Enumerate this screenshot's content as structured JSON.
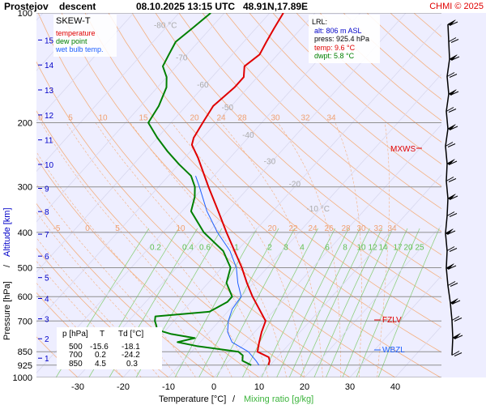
{
  "header": {
    "station": "Prostejov",
    "mode": "descent",
    "datetime": "08.10.2025 13:15 UTC",
    "coords": "48.91N,17.89E",
    "copyright": "CHMI © 2025"
  },
  "legend": {
    "title": "SKEW-T",
    "items": [
      {
        "label": "temperature",
        "color": "#e00000"
      },
      {
        "label": "dew point",
        "color": "#008000"
      },
      {
        "label": "wet bulb temp.",
        "color": "#1e60ff"
      }
    ]
  },
  "lrl": {
    "title": "LRL:",
    "alt": "alt: 806 m ASL",
    "press": "press: 925.4 hPa",
    "temp": "temp: 9.6 °C",
    "dwpt": "dwpt: 5.8 °C"
  },
  "axes": {
    "ylabel_pressure": "Pressure [hPa]",
    "ylabel_sep": "/",
    "ylabel_altitude": "Altitude [km]",
    "xlabel_temp": "Temperature [°C]",
    "xlabel_sep": "/",
    "xlabel_mix": "Mixing ratio [g/kg]"
  },
  "table": {
    "header": [
      "p [hPa]",
      "T",
      "Td [°C]"
    ],
    "rows": [
      [
        "500",
        "-15.6",
        "-18.1"
      ],
      [
        "700",
        "0.2",
        "-24.2"
      ],
      [
        "850",
        "4.5",
        "0.3"
      ]
    ]
  },
  "levels": {
    "mxws": {
      "label": "MXWS",
      "pressure": 230
    },
    "fzlv": {
      "label": "FZLV",
      "pressure": 700
    },
    "wbzl": {
      "label": "WBZL",
      "pressure": 850
    }
  },
  "chart_data": {
    "type": "line",
    "title": "SKEW-T",
    "xlabel": "Temperature [°C]",
    "ylabel": "Pressure [hPa]",
    "y_scale": "log",
    "ylim": [
      1000,
      100
    ],
    "xlim": [
      -35,
      25
    ],
    "x_ticks": [
      -30,
      -20,
      -10,
      0,
      10,
      20,
      30,
      40
    ],
    "y_ticks": [
      100,
      200,
      300,
      400,
      500,
      600,
      700,
      850,
      925,
      1000
    ],
    "altitude_ticks_km": [
      1,
      2,
      3,
      4,
      5,
      6,
      7,
      8,
      9,
      10,
      11,
      12,
      13,
      14,
      15,
      16
    ],
    "isotherm_labels": [
      -80,
      -70,
      -60,
      -50,
      -40,
      -30,
      -20,
      -10
    ],
    "mixing_ratio_labels": [
      "0.2",
      "0.4",
      "0.6",
      "1",
      "2",
      "3",
      "4",
      "6",
      "8",
      "10",
      "12",
      "14",
      "17",
      "20",
      "25"
    ],
    "adiabat_labels_top": [
      "0",
      "5",
      "10",
      "15",
      "20",
      "24",
      "28",
      "30",
      "32",
      "34"
    ],
    "adiabat_labels_mid": [
      "-10",
      "-5",
      "0",
      "5",
      "10",
      "20",
      "22",
      "24",
      "26",
      "28",
      "30",
      "32",
      "34"
    ],
    "series": [
      {
        "name": "temperature",
        "color": "#e00000",
        "points": [
          [
            925,
            9.6
          ],
          [
            900,
            9.0
          ],
          [
            880,
            8.1
          ],
          [
            850,
            4.5
          ],
          [
            800,
            3.0
          ],
          [
            750,
            1.5
          ],
          [
            700,
            0.2
          ],
          [
            650,
            -3.5
          ],
          [
            600,
            -7.5
          ],
          [
            550,
            -11.5
          ],
          [
            500,
            -15.6
          ],
          [
            450,
            -20.5
          ],
          [
            400,
            -26
          ],
          [
            350,
            -32
          ],
          [
            300,
            -39
          ],
          [
            250,
            -47
          ],
          [
            230,
            -51
          ],
          [
            220,
            -52
          ],
          [
            200,
            -53
          ],
          [
            180,
            -54
          ],
          [
            160,
            -53
          ],
          [
            150,
            -53
          ],
          [
            140,
            -55
          ],
          [
            130,
            -54
          ],
          [
            120,
            -55
          ],
          [
            110,
            -56
          ],
          [
            100,
            -57
          ]
        ]
      },
      {
        "name": "dew point",
        "color": "#008000",
        "points": [
          [
            925,
            5.8
          ],
          [
            900,
            3.0
          ],
          [
            870,
            2.0
          ],
          [
            850,
            0.3
          ],
          [
            820,
            -10
          ],
          [
            800,
            -15
          ],
          [
            780,
            -12
          ],
          [
            760,
            -18
          ],
          [
            740,
            -22
          ],
          [
            720,
            -23
          ],
          [
            700,
            -24.2
          ],
          [
            680,
            -25
          ],
          [
            660,
            -14
          ],
          [
            620,
            -12
          ],
          [
            600,
            -12
          ],
          [
            550,
            -16
          ],
          [
            500,
            -18.1
          ],
          [
            450,
            -23
          ],
          [
            400,
            -31
          ],
          [
            350,
            -38
          ],
          [
            320,
            -40
          ],
          [
            300,
            -42
          ],
          [
            280,
            -45
          ],
          [
            260,
            -50
          ],
          [
            240,
            -55
          ],
          [
            220,
            -60
          ],
          [
            200,
            -65
          ],
          [
            180,
            -66
          ],
          [
            160,
            -68
          ],
          [
            150,
            -70
          ],
          [
            140,
            -73
          ],
          [
            130,
            -74
          ],
          [
            120,
            -75
          ],
          [
            110,
            -74
          ],
          [
            100,
            -73
          ]
        ]
      },
      {
        "name": "wet bulb temp.",
        "color": "#1e60ff",
        "points": [
          [
            925,
            7.5
          ],
          [
            900,
            6.0
          ],
          [
            850,
            2.5
          ],
          [
            800,
            -3
          ],
          [
            750,
            -6
          ],
          [
            700,
            -8
          ],
          [
            650,
            -9.5
          ],
          [
            600,
            -10
          ],
          [
            550,
            -13.5
          ],
          [
            500,
            -16.8
          ],
          [
            450,
            -21.5
          ],
          [
            400,
            -28
          ],
          [
            350,
            -34.5
          ],
          [
            300,
            -41
          ],
          [
            280,
            -44
          ]
        ]
      }
    ]
  }
}
